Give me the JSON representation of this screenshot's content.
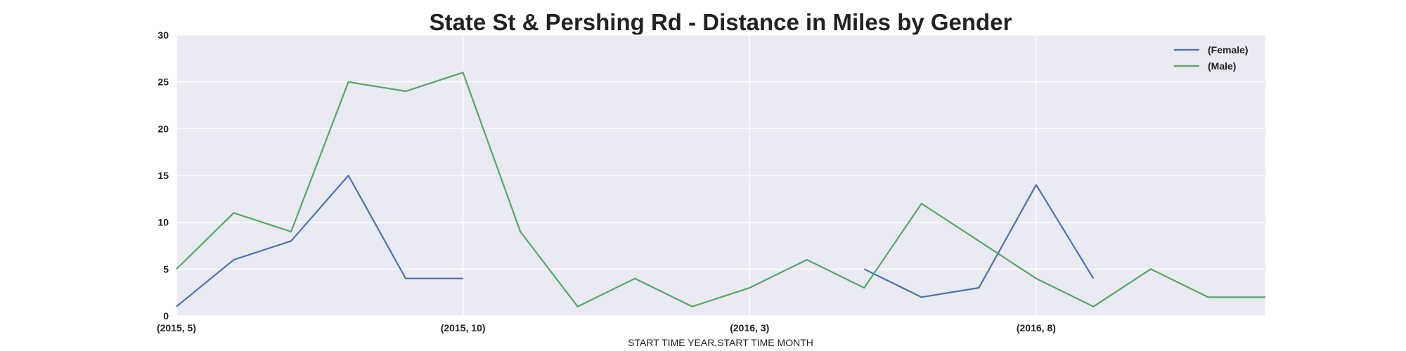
{
  "chart_data": {
    "type": "line",
    "title": "State St & Pershing Rd - Distance in Miles by Gender",
    "xlabel": "START TIME YEAR,START TIME MONTH",
    "ylabel": "",
    "x": [
      "(2015, 5)",
      "(2015, 6)",
      "(2015, 7)",
      "(2015, 8)",
      "(2015, 9)",
      "(2015, 10)",
      "(2015, 11)",
      "(2015, 12)",
      "(2016, 1)",
      "(2016, 2)",
      "(2016, 3)",
      "(2016, 4)",
      "(2016, 5)",
      "(2016, 6)",
      "(2016, 7)",
      "(2016, 8)",
      "(2016, 9)",
      "(2016, 10)",
      "(2016, 11)",
      "(2016, 12)"
    ],
    "x_ticks_shown": [
      "(2015, 5)",
      "(2015, 10)",
      "(2016, 3)",
      "(2016, 8)"
    ],
    "ylim": [
      0,
      30
    ],
    "yticks": [
      0,
      5,
      10,
      15,
      20,
      25,
      30
    ],
    "grid": true,
    "legend_position": "top-right",
    "series": [
      {
        "name": "(Female)",
        "color": "#4c72b0",
        "values": [
          1,
          6,
          8,
          15,
          4,
          4,
          null,
          null,
          null,
          null,
          null,
          null,
          5,
          2,
          3,
          14,
          4,
          null,
          null,
          null
        ]
      },
      {
        "name": "(Male)",
        "color": "#55a868",
        "values": [
          5,
          11,
          9,
          25,
          24,
          26,
          9,
          1,
          4,
          1,
          3,
          6,
          3,
          12,
          8,
          4,
          1,
          5,
          2,
          2
        ]
      }
    ]
  }
}
